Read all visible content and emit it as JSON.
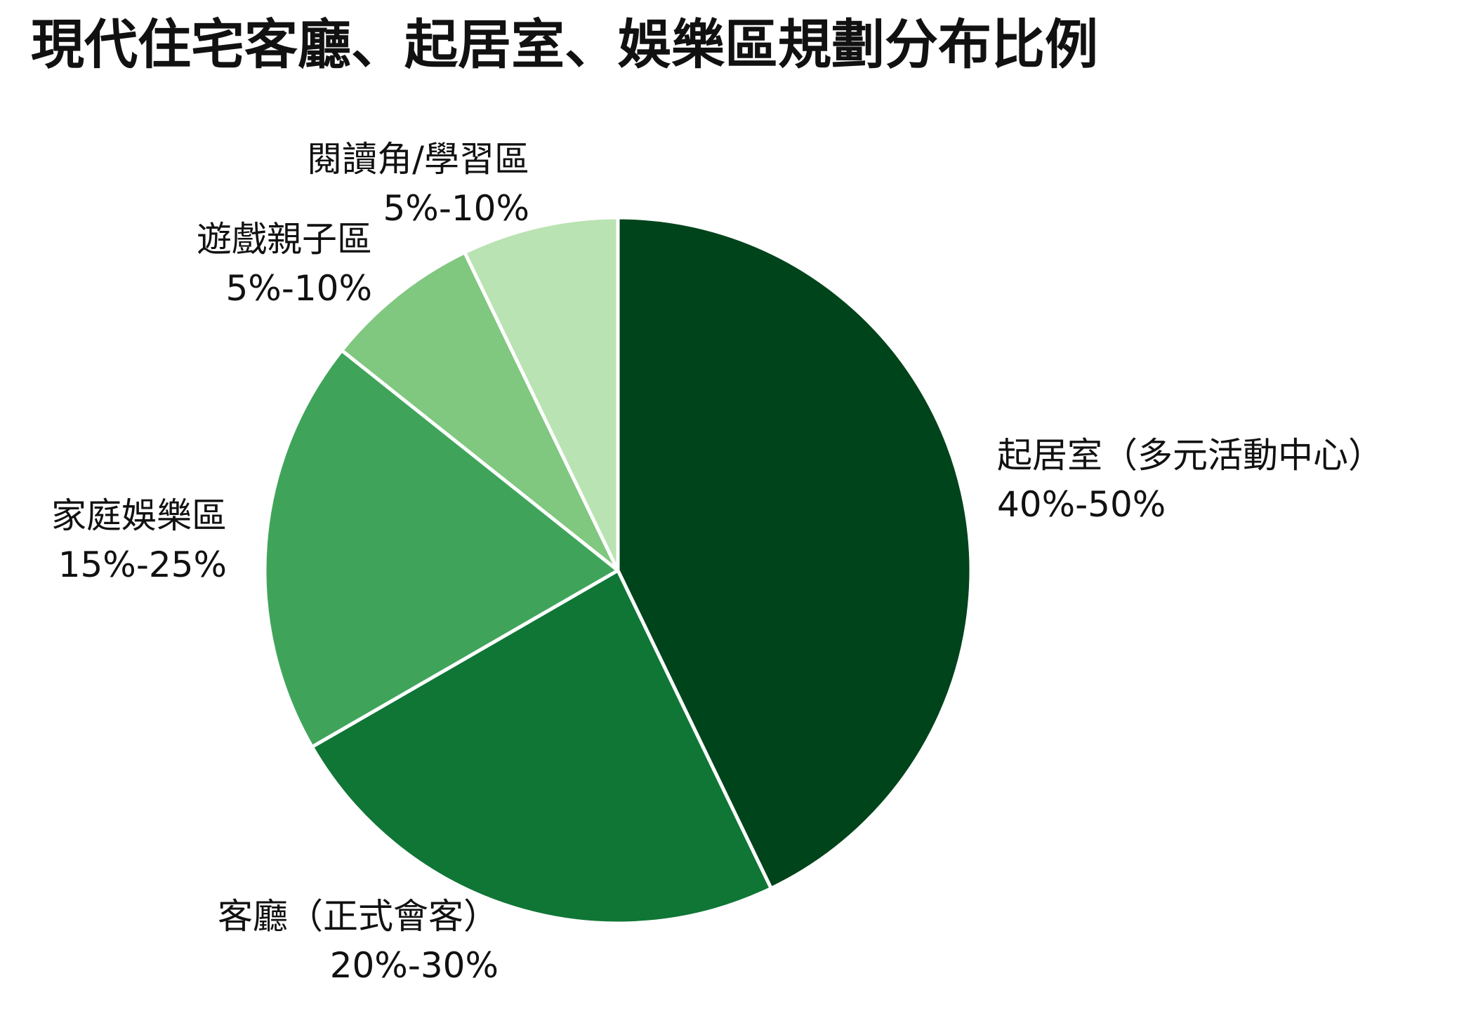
{
  "title": "現代住宅客廳、起居室、娛樂區規劃分布比例",
  "chart_data": {
    "type": "pie",
    "title": "現代住宅客廳、起居室、娛樂區規劃分布比例",
    "start": "12 o'clock",
    "direction": "clockwise",
    "slices": [
      {
        "name": "起居室（多元活動中心）",
        "range": "40%-50%",
        "value": 45,
        "color": "#00441b"
      },
      {
        "name": "客廳（正式會客）",
        "range": "20%-30%",
        "value": 25,
        "color": "#0f7636"
      },
      {
        "name": "家庭娛樂區",
        "range": "15%-25%",
        "value": 20,
        "color": "#3fa45a"
      },
      {
        "name": "遊戲親子區",
        "range": "5%-10%",
        "value": 7.5,
        "color": "#80c77f"
      },
      {
        "name": "閱讀角/學習區",
        "range": "5%-10%",
        "value": 7.5,
        "color": "#b9e3b2"
      }
    ]
  }
}
